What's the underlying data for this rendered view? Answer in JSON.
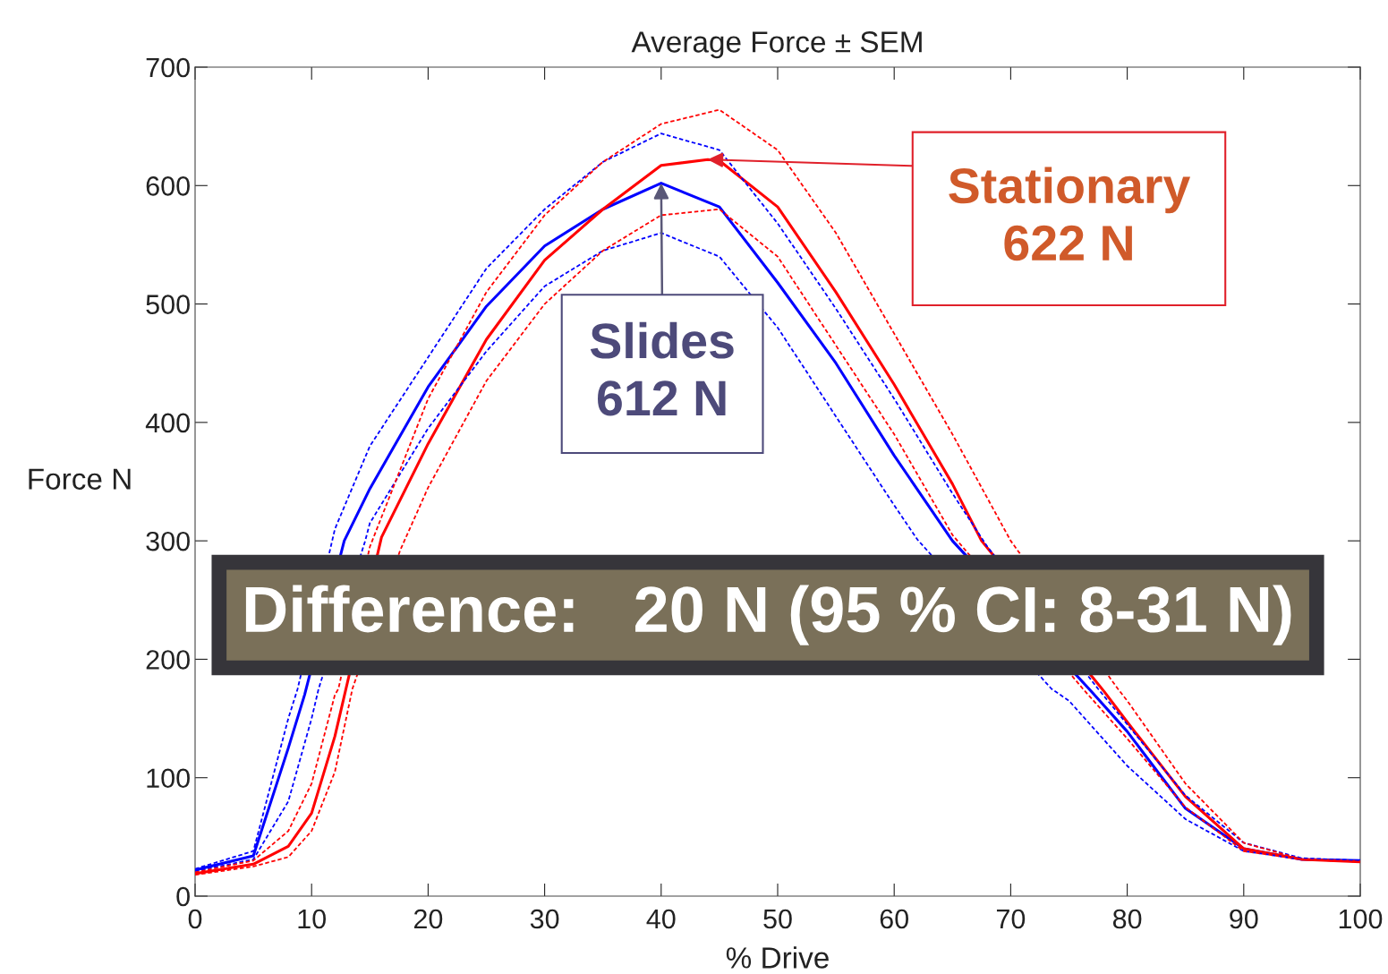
{
  "chart_data": {
    "type": "line",
    "title": "Average Force ± SEM",
    "xlabel": "% Drive",
    "ylabel": "Force N",
    "xlim": [
      0,
      100
    ],
    "ylim": [
      0,
      700
    ],
    "xticks": [
      0,
      10,
      20,
      30,
      40,
      50,
      60,
      70,
      80,
      90,
      100
    ],
    "yticks": [
      0,
      100,
      200,
      300,
      400,
      500,
      600,
      700
    ],
    "grid": false,
    "series": [
      {
        "color": "#0000ff",
        "line_style": "solid",
        "x": [
          0,
          5,
          8,
          9.4,
          12.8,
          15,
          20,
          25,
          30,
          35,
          40,
          45,
          50,
          55,
          60,
          65,
          77,
          80,
          85,
          90,
          95,
          100
        ],
        "values": [
          22,
          34,
          125,
          170,
          300,
          344,
          430,
          498,
          549,
          580,
          602,
          582,
          518,
          450,
          372,
          300,
          172,
          139,
          74,
          40,
          31,
          30
        ]
      },
      {
        "color": "#ff0000",
        "line_style": "solid",
        "x": [
          0,
          5,
          8,
          10,
          12,
          12.9,
          16,
          20,
          25,
          30,
          35,
          40,
          44,
          45,
          50,
          55,
          60,
          65,
          67.5,
          78,
          80,
          85,
          90,
          95,
          100
        ],
        "values": [
          19,
          27,
          42,
          70,
          135,
          173,
          303,
          382,
          470,
          537,
          580,
          617,
          622,
          621,
          582,
          510,
          432,
          348,
          300,
          173,
          147,
          84,
          40,
          31,
          29
        ]
      },
      {
        "color": "#0000ff",
        "line_style": "dashed",
        "x": [
          0,
          5,
          8,
          8.8,
          12,
          15,
          20,
          25,
          30,
          35,
          40,
          45,
          50,
          55,
          60,
          65,
          68,
          77.5,
          80,
          85,
          90,
          95,
          100
        ],
        "values": [
          23,
          38,
          150,
          175,
          310,
          380,
          455,
          530,
          580,
          620,
          644,
          630,
          568,
          496,
          420,
          340,
          295,
          175,
          145,
          85,
          45,
          32,
          30
        ]
      },
      {
        "color": "#0000ff",
        "line_style": "dashed",
        "x": [
          0,
          5,
          8,
          10,
          10.6,
          14.6,
          15,
          20,
          25,
          30,
          35,
          40,
          45,
          50,
          55,
          60,
          62,
          73.5,
          75,
          80,
          85,
          90,
          95,
          100
        ],
        "values": [
          21,
          31,
          80,
          150,
          175,
          300,
          315,
          395,
          460,
          515,
          545,
          560,
          540,
          480,
          405,
          330,
          301,
          175,
          165,
          110,
          65,
          38,
          31,
          30
        ]
      },
      {
        "color": "#ff0000",
        "line_style": "dashed",
        "x": [
          0,
          5,
          8,
          10,
          12,
          12.3,
          15,
          20,
          25,
          30,
          35,
          40,
          45,
          50,
          55,
          60,
          65,
          70,
          79.2,
          80,
          85,
          90,
          95,
          100
        ],
        "values": [
          20,
          30,
          55,
          95,
          170,
          175,
          295,
          420,
          510,
          575,
          620,
          652,
          664,
          630,
          560,
          475,
          390,
          300,
          175,
          165,
          95,
          45,
          31,
          29
        ]
      },
      {
        "color": "#ff0000",
        "line_style": "dashed",
        "x": [
          0,
          5,
          8,
          10,
          12,
          13.5,
          17.6,
          20,
          25,
          30,
          35,
          40,
          45,
          50,
          55,
          60,
          65,
          76.2,
          80,
          85,
          90,
          95,
          100
        ],
        "values": [
          18,
          25,
          33,
          55,
          105,
          175,
          292,
          345,
          435,
          500,
          545,
          575,
          580,
          540,
          465,
          390,
          305,
          175,
          133,
          75,
          38,
          31,
          29
        ]
      }
    ],
    "annotations": [
      {
        "text": "Slides\n612 N",
        "x": 40,
        "y": 602
      },
      {
        "text": "Stationary\n622 N",
        "x": 44,
        "y": 622
      },
      "Difference:   20 N (95 % CI: 8-31 N)"
    ]
  }
}
